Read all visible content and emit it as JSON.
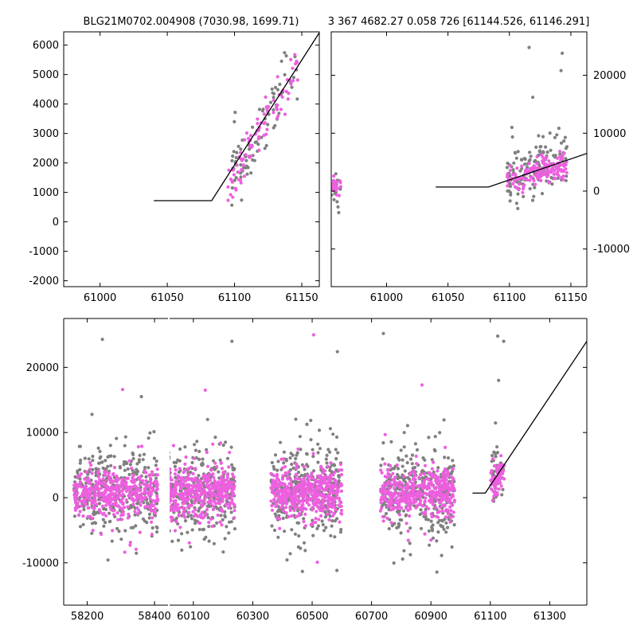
{
  "chart_data": [
    {
      "type": "scatter",
      "title": "BLG21M0702.004908 (7030.98, 1699.71)",
      "xlim": [
        60973,
        61163
      ],
      "ylim": [
        -2200,
        6450
      ],
      "xticks": [
        61000,
        61050,
        61100,
        61150
      ],
      "yticks": [
        -2000,
        -1000,
        0,
        1000,
        2000,
        3000,
        4000,
        5000,
        6000
      ],
      "ytick_side": "left",
      "model_line": {
        "x": [
          61040,
          61083,
          61163
        ],
        "y": [
          720,
          720,
          6420
        ]
      },
      "series": [
        {
          "name": "gray",
          "color": "#808080",
          "trend": {
            "x0": 61097,
            "x1": 61147,
            "y0": 1500,
            "y1": 5300,
            "scatter": 550,
            "n": 85,
            "seed": 11
          }
        },
        {
          "name": "magenta",
          "color": "#ee5fe0",
          "trend": {
            "x0": 61095,
            "x1": 61147,
            "y0": 1200,
            "y1": 5200,
            "scatter": 450,
            "n": 90,
            "seed": 12
          }
        }
      ]
    },
    {
      "type": "scatter",
      "title": "3 367 4682.27 0.058 726 [61144.526, 61146.291]",
      "xlim": [
        60955,
        61163
      ],
      "ylim": [
        -16500,
        27500
      ],
      "xticks": [
        61000,
        61050,
        61100,
        61150
      ],
      "yticks": [
        -10000,
        0,
        10000,
        20000
      ],
      "ytick_side": "right",
      "model_line": {
        "x": [
          61040,
          61083,
          61163
        ],
        "y": [
          700,
          700,
          6500
        ]
      },
      "series": [
        {
          "name": "gray",
          "color": "#808080",
          "clusters": [
            {
              "x0": 60955,
              "x1": 60963,
              "ymean": 1000,
              "ysd": 1200,
              "n": 18,
              "seed": 21
            },
            {
              "x0": 61098,
              "x1": 61147,
              "ymean": 3500,
              "ysd": 2200,
              "n": 140,
              "seed": 22,
              "slope": 60
            }
          ],
          "outliers": [
            [
              61116,
              24800
            ],
            [
              61143,
              23800
            ],
            [
              61142,
              20800
            ],
            [
              61119,
              16200
            ],
            [
              61102,
              11000
            ]
          ]
        },
        {
          "name": "magenta",
          "color": "#ee5fe0",
          "clusters": [
            {
              "x0": 60955,
              "x1": 60963,
              "ymean": 700,
              "ysd": 900,
              "n": 20,
              "seed": 31
            },
            {
              "x0": 61098,
              "x1": 61147,
              "ymean": 3200,
              "ysd": 1100,
              "n": 160,
              "seed": 32,
              "slope": 60
            }
          ]
        }
      ]
    },
    {
      "type": "scatter",
      "title": "",
      "xlim_segments": [
        [
          58130,
          58440
        ],
        [
          60020,
          61425
        ]
      ],
      "ylim": [
        -16500,
        27500
      ],
      "xticks": [
        58200,
        58400,
        60100,
        60300,
        60500,
        60700,
        60900,
        61100,
        61300
      ],
      "yticks": [
        -10000,
        0,
        10000,
        20000
      ],
      "ytick_side": "left",
      "model_line": {
        "x": [
          61040,
          61083,
          61425
        ],
        "y": [
          700,
          700,
          24000
        ]
      },
      "series": [
        {
          "name": "gray",
          "color": "#808080",
          "clusters": [
            {
              "x0": 58160,
              "x1": 58410,
              "ymean": 900,
              "ysd": 3200,
              "n": 330,
              "seed": 41
            },
            {
              "x0": 60000,
              "x1": 60240,
              "ymean": 900,
              "ysd": 3300,
              "n": 340,
              "seed": 42
            },
            {
              "x0": 60360,
              "x1": 60600,
              "ymean": 900,
              "ysd": 3400,
              "n": 340,
              "seed": 43
            },
            {
              "x0": 60730,
              "x1": 60980,
              "ymean": 900,
              "ysd": 3200,
              "n": 330,
              "seed": 44
            },
            {
              "x0": 61105,
              "x1": 61147,
              "ymean": 3500,
              "ysd": 2000,
              "n": 50,
              "seed": 45,
              "slope": 60
            }
          ],
          "outliers": [
            [
              60740,
              25200
            ],
            [
              61125,
              24800
            ],
            [
              61145,
              24000
            ],
            [
              58245,
              24300
            ],
            [
              60230,
              24000
            ],
            [
              60585,
              22400
            ],
            [
              61128,
              18000
            ]
          ]
        },
        {
          "name": "magenta",
          "color": "#ee5fe0",
          "clusters": [
            {
              "x0": 58160,
              "x1": 58410,
              "ymean": 700,
              "ysd": 1800,
              "n": 420,
              "seed": 51
            },
            {
              "x0": 60000,
              "x1": 60240,
              "ymean": 800,
              "ysd": 1900,
              "n": 440,
              "seed": 52
            },
            {
              "x0": 60360,
              "x1": 60600,
              "ymean": 700,
              "ysd": 1900,
              "n": 440,
              "seed": 53
            },
            {
              "x0": 60730,
              "x1": 60980,
              "ymean": 700,
              "ysd": 1800,
              "n": 420,
              "seed": 54
            },
            {
              "x0": 61100,
              "x1": 61147,
              "ymean": 3000,
              "ysd": 1300,
              "n": 70,
              "seed": 55,
              "slope": 60
            }
          ],
          "outliers": [
            [
              60505,
              25000
            ],
            [
              58305,
              16600
            ],
            [
              60870,
              17300
            ],
            [
              60140,
              16500
            ]
          ]
        }
      ]
    }
  ]
}
